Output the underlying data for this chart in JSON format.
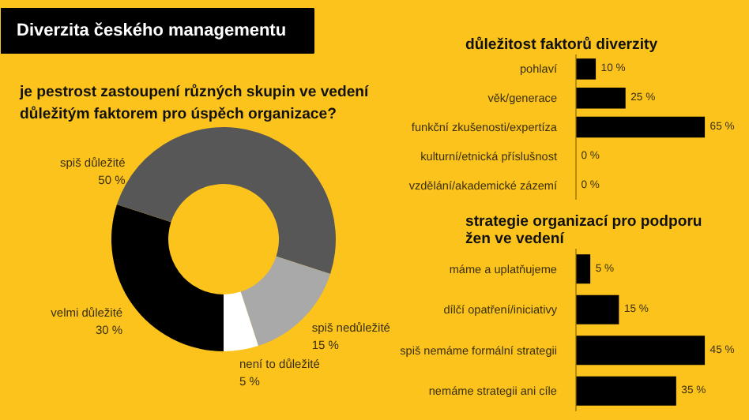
{
  "chart_data": [
    {
      "type": "donut",
      "title": "Diverzita českého managementu",
      "subtitle": "je pestrost zastoupení různých skupin ve vedení důležitým faktorem pro úspěch organizace?",
      "categories": [
        "velmi důležité",
        "spiš důležité",
        "spiš nedůležité",
        "není to důležité"
      ],
      "values": [
        30,
        50,
        15,
        5
      ],
      "colors": [
        "#000000",
        "#575757",
        "#a9a9a9",
        "#ffffff"
      ],
      "value_labels": [
        "30 %",
        "50 %",
        "15 %",
        "5 %"
      ]
    },
    {
      "type": "bar",
      "orientation": "horizontal",
      "title": "důležitost faktorů diverzity",
      "categories": [
        "pohlaví",
        "věk/generace",
        "funkční zkušenosti/expertíza",
        "kulturní/etnická příslušnost",
        "vzdělání/akademické zázemí"
      ],
      "values": [
        10,
        25,
        65,
        0,
        0
      ],
      "color": "#000000",
      "value_labels": [
        "10 %",
        "25 %",
        "65 %",
        "0 %",
        "0 %"
      ]
    },
    {
      "type": "bar",
      "orientation": "horizontal",
      "title": "strategie organizací pro podporu žen ve vedení",
      "categories": [
        "máme a uplatňujeme",
        "dílčí opatření/iniciativy",
        "spiš nemáme formální strategii",
        "nemáme strategii ani cíle"
      ],
      "values": [
        5,
        15,
        45,
        35
      ],
      "color": "#000000",
      "value_labels": [
        "5 %",
        "15 %",
        "45 %",
        "35 %"
      ]
    }
  ]
}
